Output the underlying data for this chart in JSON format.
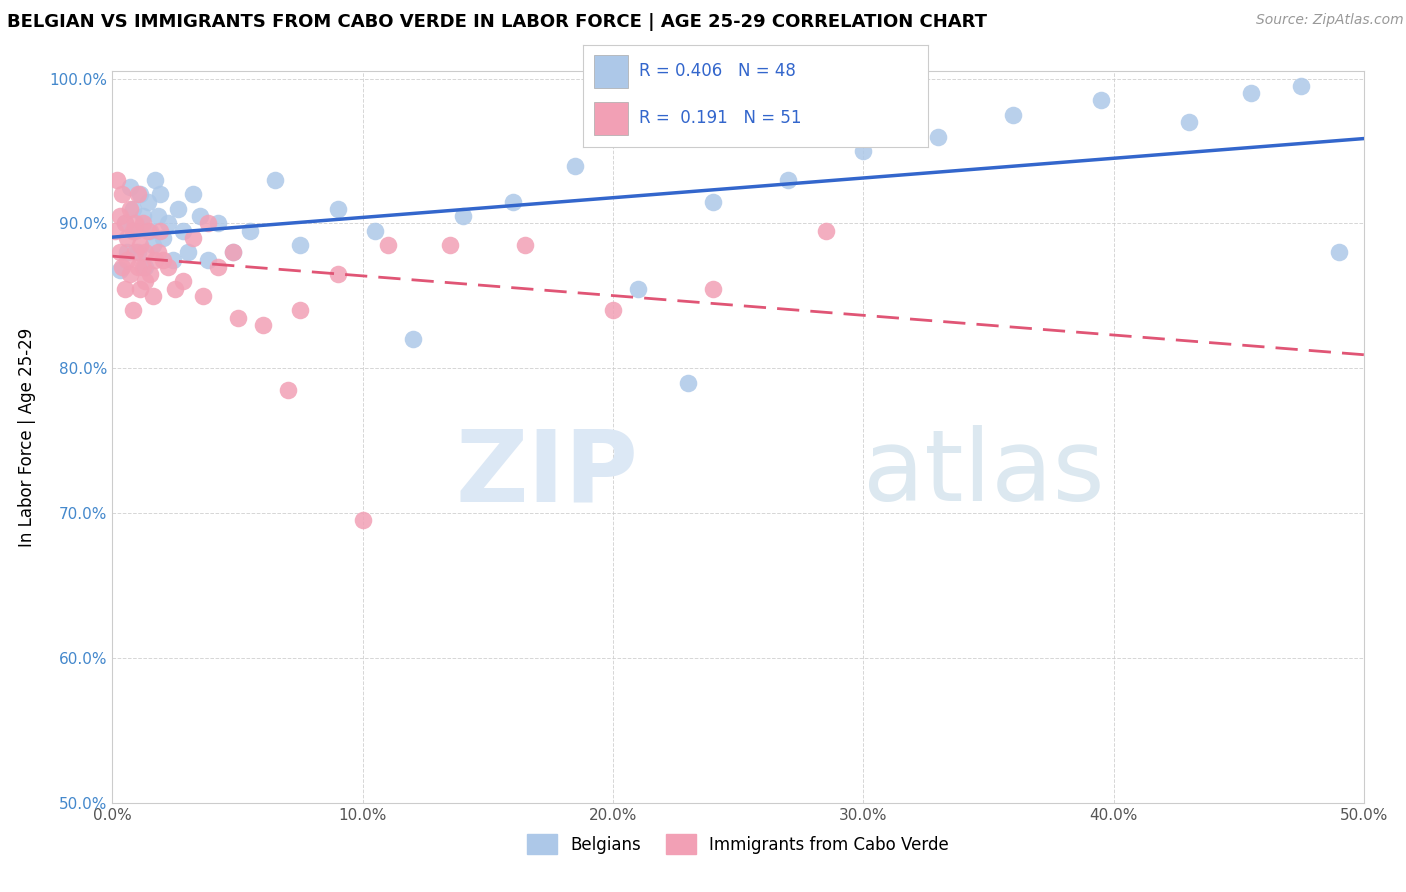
{
  "title": "BELGIAN VS IMMIGRANTS FROM CABO VERDE IN LABOR FORCE | AGE 25-29 CORRELATION CHART",
  "source": "Source: ZipAtlas.com",
  "ylabel": "In Labor Force | Age 25-29",
  "xlim": [
    0.0,
    0.5
  ],
  "ylim": [
    0.5,
    1.005
  ],
  "xtick_vals": [
    0.0,
    0.1,
    0.2,
    0.3,
    0.4,
    0.5
  ],
  "xtick_labels": [
    "0.0%",
    "10.0%",
    "20.0%",
    "30.0%",
    "40.0%",
    "50.0%"
  ],
  "ytick_vals": [
    0.5,
    0.6,
    0.7,
    0.8,
    0.9,
    1.0
  ],
  "ytick_labels": [
    "50.0%",
    "60.0%",
    "70.0%",
    "80.0%",
    "90.0%",
    "100.0%"
  ],
  "blue_color": "#adc8e8",
  "pink_color": "#f2a0b5",
  "line_blue": "#3366cc",
  "line_pink": "#e05575",
  "legend_blue_text": "R = 0.406   N = 48",
  "legend_pink_text": "R =  0.191   N = 51",
  "blue_scatter_x": [
    0.003,
    0.005,
    0.006,
    0.007,
    0.008,
    0.009,
    0.01,
    0.011,
    0.012,
    0.013,
    0.014,
    0.015,
    0.016,
    0.017,
    0.018,
    0.019,
    0.02,
    0.022,
    0.024,
    0.026,
    0.028,
    0.03,
    0.032,
    0.035,
    0.038,
    0.042,
    0.048,
    0.055,
    0.065,
    0.075,
    0.09,
    0.105,
    0.12,
    0.14,
    0.16,
    0.185,
    0.21,
    0.24,
    0.27,
    0.3,
    0.33,
    0.36,
    0.395,
    0.43,
    0.455,
    0.475,
    0.49,
    0.23
  ],
  "blue_scatter_y": [
    0.868,
    0.9,
    0.88,
    0.925,
    0.91,
    0.895,
    0.88,
    0.92,
    0.905,
    0.87,
    0.915,
    0.895,
    0.885,
    0.93,
    0.905,
    0.92,
    0.89,
    0.9,
    0.875,
    0.91,
    0.895,
    0.88,
    0.92,
    0.905,
    0.875,
    0.9,
    0.88,
    0.895,
    0.93,
    0.885,
    0.91,
    0.895,
    0.82,
    0.905,
    0.915,
    0.94,
    0.855,
    0.915,
    0.93,
    0.95,
    0.96,
    0.975,
    0.985,
    0.97,
    0.99,
    0.995,
    0.88,
    0.79
  ],
  "pink_scatter_x": [
    0.001,
    0.002,
    0.003,
    0.003,
    0.004,
    0.004,
    0.005,
    0.005,
    0.006,
    0.006,
    0.007,
    0.007,
    0.008,
    0.008,
    0.009,
    0.009,
    0.01,
    0.01,
    0.011,
    0.011,
    0.012,
    0.012,
    0.013,
    0.013,
    0.014,
    0.015,
    0.016,
    0.017,
    0.018,
    0.019,
    0.02,
    0.022,
    0.025,
    0.028,
    0.032,
    0.036,
    0.042,
    0.05,
    0.06,
    0.075,
    0.09,
    0.11,
    0.135,
    0.165,
    0.2,
    0.24,
    0.285,
    0.038,
    0.048,
    0.07,
    0.1
  ],
  "pink_scatter_y": [
    0.895,
    0.93,
    0.905,
    0.88,
    0.92,
    0.87,
    0.9,
    0.855,
    0.89,
    0.875,
    0.91,
    0.865,
    0.895,
    0.84,
    0.88,
    0.9,
    0.87,
    0.92,
    0.855,
    0.885,
    0.9,
    0.87,
    0.88,
    0.86,
    0.895,
    0.865,
    0.85,
    0.875,
    0.88,
    0.895,
    0.875,
    0.87,
    0.855,
    0.86,
    0.89,
    0.85,
    0.87,
    0.835,
    0.83,
    0.84,
    0.865,
    0.885,
    0.885,
    0.885,
    0.84,
    0.855,
    0.895,
    0.9,
    0.88,
    0.785,
    0.695
  ],
  "watermark_zip_color": "#dce8f5",
  "watermark_atlas_color": "#dce8f0"
}
